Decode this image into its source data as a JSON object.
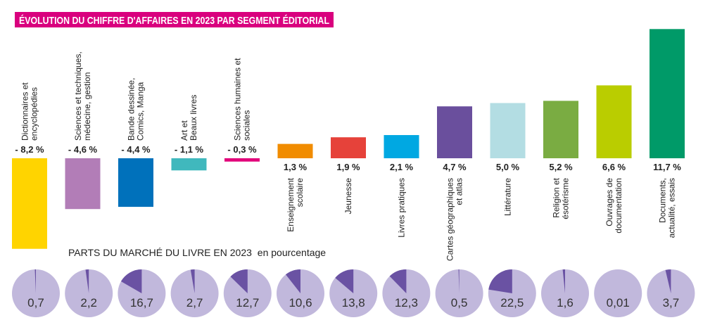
{
  "chart_data": [
    {
      "type": "bar",
      "title": "ÉVOLUTION DU CHIFFRE D'AFFAIRES EN 2023 PAR SEGMENT ÉDITORIAL",
      "title_color": "#d9007e",
      "unit": "%",
      "categories": [
        [
          "Dictionnaires et",
          "encyclopédies"
        ],
        [
          "Sciences et techniques,",
          "médecine, gestion"
        ],
        [
          "Bande dessinée,",
          "Comics, Manga"
        ],
        [
          "Art et",
          "Beaux livres"
        ],
        [
          "Sciences humaines et",
          "sociales"
        ],
        [
          "Enseignement",
          "scolaire"
        ],
        [
          "Jeunesse"
        ],
        [
          "Livres pratiques"
        ],
        [
          "Cartes géographiques",
          "et atlas"
        ],
        [
          "Littérature"
        ],
        [
          "Religion et",
          "ésotérisme"
        ],
        [
          "Ouvrages de",
          "documentation"
        ],
        [
          "Documents,",
          "actualité, essais"
        ]
      ],
      "values": [
        -8.2,
        -4.6,
        -4.4,
        -1.1,
        -0.3,
        1.3,
        1.9,
        2.1,
        4.7,
        5.0,
        5.2,
        6.6,
        11.7
      ],
      "value_labels": [
        "- 8,2 %",
        "- 4,6 %",
        "- 4,4 %",
        "- 1,1 %",
        "- 0,3 %",
        "1,3 %",
        "1,9 %",
        "2,1 %",
        "4,7 %",
        "5,0 %",
        "5,2 %",
        "6,6 %",
        "11,7 %"
      ],
      "colors": [
        "#ffd400",
        "#b27db7",
        "#0071bb",
        "#40b8bd",
        "#e2007a",
        "#f18c00",
        "#e6423a",
        "#00a8e2",
        "#6a4f9d",
        "#b3dde3",
        "#7aac42",
        "#bacd00",
        "#009a68"
      ],
      "grid": false
    },
    {
      "type": "pie",
      "title": "PARTS DU MARCHÉ DU LIVRE EN 2023",
      "subtitle": "en pourcentage",
      "values": [
        0.7,
        2.2,
        16.7,
        2.7,
        12.7,
        10.6,
        13.8,
        12.3,
        0.5,
        22.5,
        1.6,
        0.01,
        3.7
      ],
      "value_labels": [
        "0,7",
        "2,2",
        "16,7",
        "2,7",
        "12,7",
        "10,6",
        "13,8",
        "12,3",
        "0,5",
        "22,5",
        "1,6",
        "0,01",
        "3,7"
      ],
      "slice_color": "#6a52a3",
      "rest_color": "#c1b8dc"
    }
  ]
}
